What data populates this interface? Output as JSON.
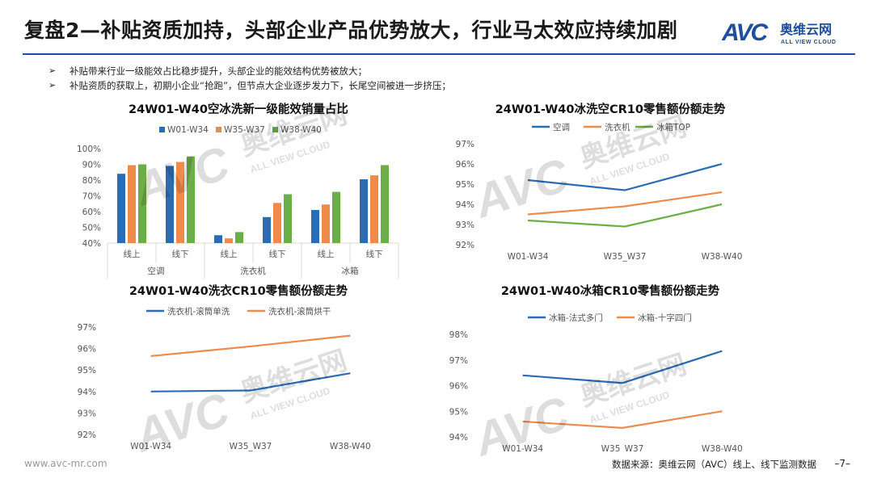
{
  "header": {
    "title": "复盘2—补贴资质加持，头部企业产品优势放大，行业马太效应持续加剧",
    "logo_text": "奥维云网",
    "logo_sub": "ALL VIEW CLOUD",
    "logo_mark": "AVC"
  },
  "bullets": [
    "补贴带来行业一级能效占比稳步提升，头部企业的能效结构优势被放大；",
    "补贴资质的获取上，初期小企业“抢跑”，但节点大企业逐步发力下，长尾空间被进一步挤压；"
  ],
  "watermark": {
    "mark": "AVC",
    "text": "奥维云网",
    "sub": "ALL VIEW CLOUD"
  },
  "footer": {
    "website": "www.avc-mr.com",
    "source": "数据来源：奥维云网（AVC）线上、线下监测数据",
    "page": "–7–"
  },
  "colors": {
    "blue": "#2a6db5",
    "orange": "#ee8a4a",
    "green": "#6cae47",
    "rule": "#1f4e9c"
  },
  "chart_data": [
    {
      "type": "bar",
      "title": "24W01-W40空冰洗新一级能效销量占比",
      "categories": [
        "线上",
        "线下",
        "线上",
        "线下",
        "线上",
        "线下"
      ],
      "groups": [
        "空调",
        "洗衣机",
        "冰箱"
      ],
      "series": [
        {
          "name": "W01-W34",
          "color": "#2a6db5",
          "values": [
            84,
            89,
            45,
            56.5,
            61,
            80.5
          ]
        },
        {
          "name": "W35-W37",
          "color": "#ee8a4a",
          "values": [
            89.5,
            91.5,
            43,
            65.5,
            64.5,
            83
          ]
        },
        {
          "name": "W38-W40",
          "color": "#6cae47",
          "values": [
            90,
            95,
            47,
            71,
            72.5,
            89.5
          ]
        }
      ],
      "yticks": [
        "40%",
        "50%",
        "60%",
        "70%",
        "80%",
        "90%",
        "100%"
      ],
      "ylim": [
        40,
        100
      ],
      "legend": "top"
    },
    {
      "type": "line",
      "title": "24W01-W40冰洗空CR10零售额份额走势",
      "x": [
        "W01-W34",
        "W35_W37",
        "W38-W40"
      ],
      "series": [
        {
          "name": "空调",
          "color": "#2a6db5",
          "values": [
            95.2,
            94.7,
            96.0
          ]
        },
        {
          "name": "洗衣机",
          "color": "#ee8a4a",
          "values": [
            93.5,
            93.9,
            94.6
          ]
        },
        {
          "name": "冰箱TOP",
          "color": "#6cae47",
          "values": [
            93.2,
            92.9,
            94.0
          ]
        }
      ],
      "yticks": [
        "92%",
        "93%",
        "94%",
        "95%",
        "96%",
        "97%"
      ],
      "ylim": [
        92,
        97
      ],
      "legend": "top"
    },
    {
      "type": "line",
      "title": "24W01-W40洗衣CR10零售额份额走势",
      "x": [
        "W01-W34",
        "W35_W37",
        "W38-W40"
      ],
      "series": [
        {
          "name": "洗衣机-滚筒单洗",
          "color": "#2a6db5",
          "values": [
            94.0,
            94.05,
            94.85
          ]
        },
        {
          "name": "洗衣机-滚筒烘干",
          "color": "#ee8a4a",
          "values": [
            95.65,
            96.1,
            96.6
          ]
        }
      ],
      "yticks": [
        "92%",
        "93%",
        "94%",
        "95%",
        "96%",
        "97%"
      ],
      "ylim": [
        92,
        97
      ],
      "legend": "top"
    },
    {
      "type": "line",
      "title": "24W01-W40冰箱CR10零售额份额走势",
      "x": [
        "W01-W34",
        "W35_W37",
        "W38-W40"
      ],
      "series": [
        {
          "name": "冰箱-法式多门",
          "color": "#2a6db5",
          "values": [
            96.4,
            96.1,
            97.35
          ]
        },
        {
          "name": "冰箱-十字四门",
          "color": "#ee8a4a",
          "values": [
            94.6,
            94.35,
            95.0
          ]
        }
      ],
      "yticks": [
        "94%",
        "95%",
        "96%",
        "97%",
        "98%"
      ],
      "ylim": [
        94,
        98
      ],
      "legend": "top"
    }
  ]
}
